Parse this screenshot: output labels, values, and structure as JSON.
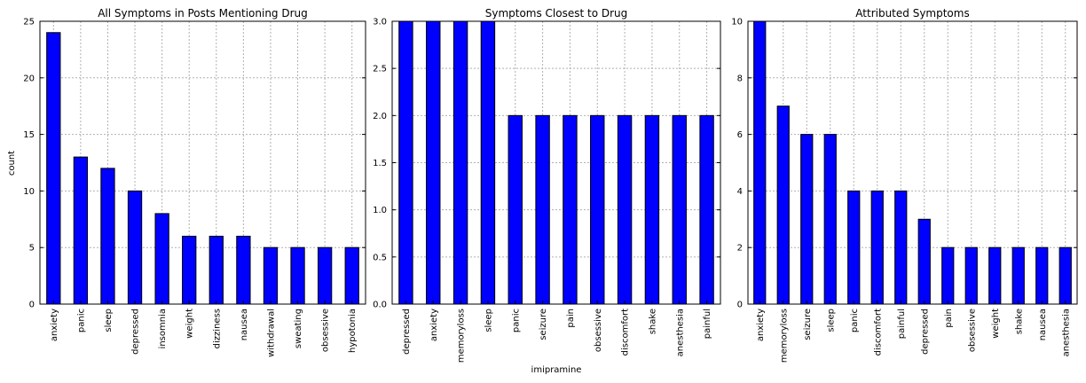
{
  "figure": {
    "xlabel": "imipramine",
    "ylabel": "count"
  },
  "colors": {
    "bar": "#0000ff",
    "grid": "#b0b0b0",
    "axis": "#000000"
  },
  "chart_data": [
    {
      "type": "bar",
      "title": "All Symptoms in Posts Mentioning Drug",
      "ylabel": "count",
      "xlabel": "",
      "ylim": [
        0,
        25
      ],
      "yticks": [
        "0",
        "5",
        "10",
        "15",
        "20",
        "25"
      ],
      "ytick_values": [
        0,
        5,
        10,
        15,
        20,
        25
      ],
      "categories": [
        "anxiety",
        "panic",
        "sleep",
        "depressed",
        "insomnia",
        "weight",
        "dizziness",
        "nausea",
        "withdrawal",
        "sweating",
        "obsessive",
        "hypotonia"
      ],
      "values": [
        24,
        13,
        12,
        10,
        8,
        6,
        6,
        6,
        5,
        5,
        5,
        5
      ],
      "grid": true
    },
    {
      "type": "bar",
      "title": "Symptoms Closest to Drug",
      "ylabel": "",
      "xlabel": "imipramine",
      "ylim": [
        0,
        3
      ],
      "yticks": [
        "0.0",
        "0.5",
        "1.0",
        "1.5",
        "2.0",
        "2.5",
        "3.0"
      ],
      "ytick_values": [
        0,
        0.5,
        1,
        1.5,
        2,
        2.5,
        3
      ],
      "categories": [
        "depressed",
        "anxiety",
        "memoryloss",
        "sleep",
        "panic",
        "seizure",
        "pain",
        "obsessive",
        "discomfort",
        "shake",
        "anesthesia",
        "painful"
      ],
      "values": [
        3,
        3,
        3,
        3,
        2,
        2,
        2,
        2,
        2,
        2,
        2,
        2
      ],
      "grid": true
    },
    {
      "type": "bar",
      "title": "Attributed Symptoms",
      "ylabel": "",
      "xlabel": "",
      "ylim": [
        0,
        10
      ],
      "yticks": [
        "0",
        "2",
        "4",
        "6",
        "8",
        "10"
      ],
      "ytick_values": [
        0,
        2,
        4,
        6,
        8,
        10
      ],
      "categories": [
        "anxiety",
        "memoryloss",
        "seizure",
        "sleep",
        "panic",
        "discomfort",
        "painful",
        "depressed",
        "pain",
        "obsessive",
        "weight",
        "shake",
        "nausea",
        "anesthesia"
      ],
      "values": [
        10,
        7,
        6,
        6,
        4,
        4,
        4,
        3,
        2,
        2,
        2,
        2,
        2,
        2
      ],
      "grid": true
    }
  ]
}
